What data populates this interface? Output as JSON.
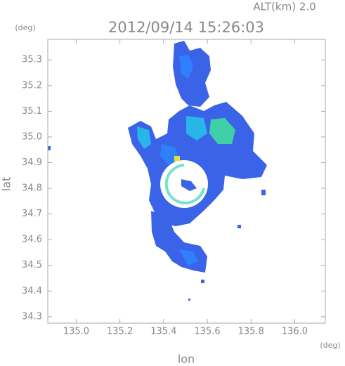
{
  "chart_data": {
    "type": "radar-map",
    "title": "2012/09/14 15:26:03",
    "subtitle": "ALT(km) 2.0",
    "xlabel": "lon",
    "ylabel": "lat",
    "x_unit": "(deg)",
    "y_unit": "(deg)",
    "xlim": [
      134.87,
      136.14
    ],
    "ylim": [
      34.275,
      35.38
    ],
    "xticks": [
      {
        "value": 135,
        "label": "135.0"
      },
      135.2,
      135.4,
      135.6,
      135.8,
      {
        "value": 136,
        "label": "136.0"
      }
    ],
    "yticks": [
      {
        "value": 34.3,
        "label": "34.3"
      },
      34.4,
      34.5,
      34.6,
      34.7,
      34.8,
      34.9,
      {
        "value": 35,
        "label": "35.0"
      },
      35.1,
      35.2,
      35.3
    ],
    "grid": false
  }
}
